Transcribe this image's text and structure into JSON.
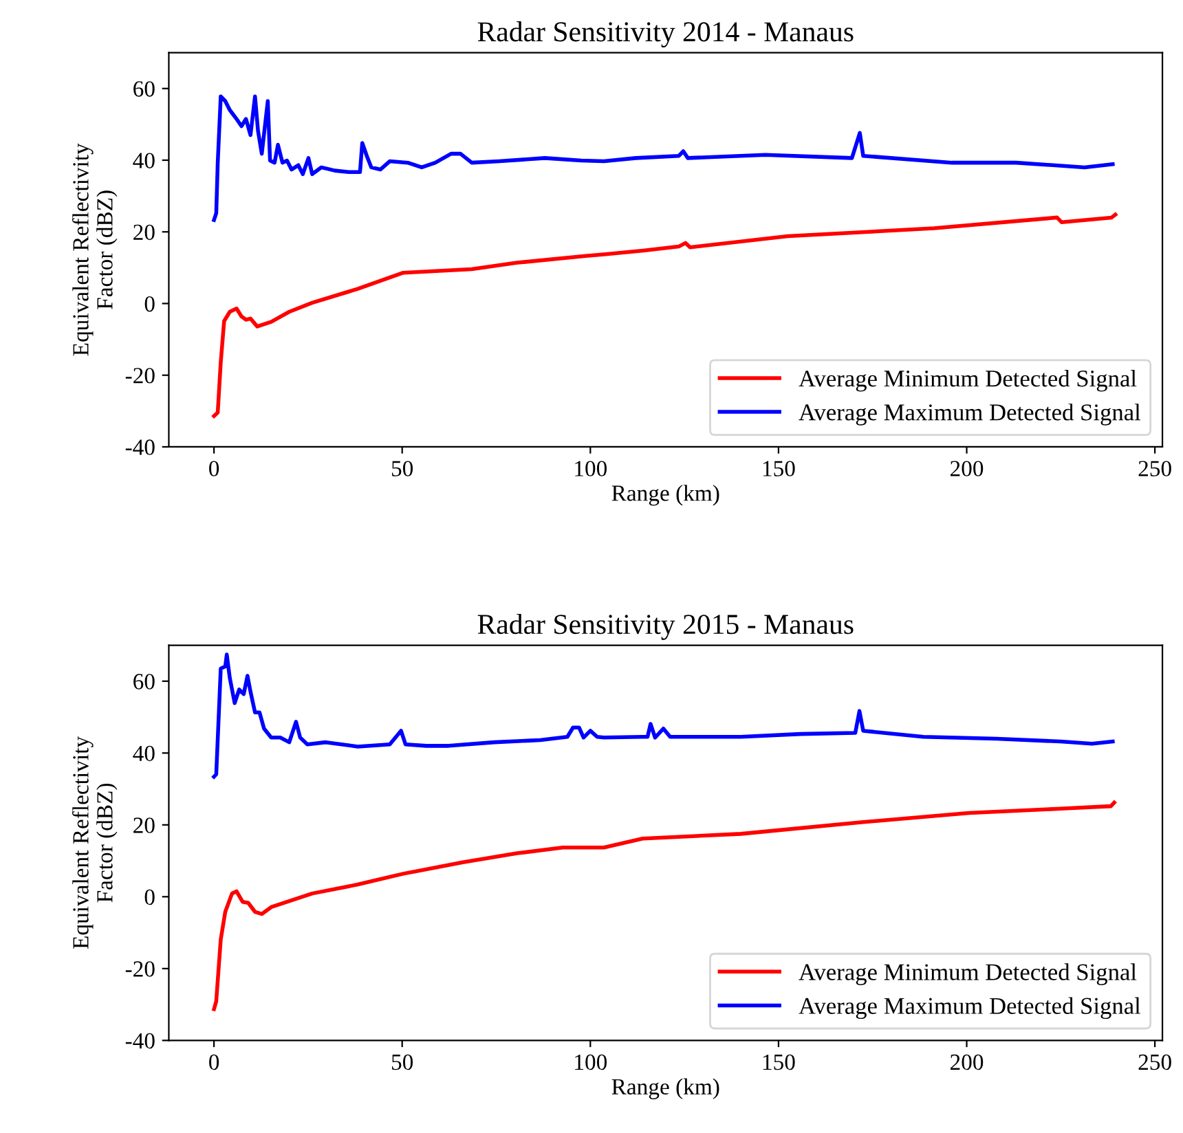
{
  "chart_data": [
    {
      "type": "line",
      "title": "Radar Sensitivity 2014 - Manaus",
      "xlabel": "Range (km)",
      "ylabel": "Equivalent Reflectivity\nFactor (dBZ)",
      "xlim": [
        -12,
        252
      ],
      "xticks": [
        0,
        50,
        100,
        150,
        200,
        250
      ],
      "ylim": [
        -40,
        70
      ],
      "yticks": [
        -40,
        -20,
        0,
        20,
        40,
        60
      ],
      "grid": false,
      "legend": "bottom right",
      "marker": "none",
      "line_style": "solid",
      "series": [
        {
          "name": "Average Minimum Detected Signal",
          "color": "#ff0000",
          "x": [
            0,
            1.0,
            1.8,
            2.7,
            4.2,
            6.0,
            7.3,
            8.5,
            9.7,
            11.5,
            15.2,
            20.0,
            26.1,
            38.2,
            50.3,
            68.5,
            80.6,
            98.8,
            103.6,
            114.5,
            123.5,
            125.3,
            126.5,
            152.5,
            191.3,
            224.0,
            225.2,
            238.5,
            239.5
          ],
          "values": [
            -31.4,
            -30.4,
            -16.4,
            -4.9,
            -2.3,
            -1.4,
            -3.6,
            -4.5,
            -4.2,
            -6.4,
            -5.1,
            -2.3,
            0.2,
            4.1,
            8.6,
            9.6,
            11.4,
            13.3,
            13.7,
            14.8,
            15.9,
            16.9,
            15.7,
            18.8,
            21.0,
            24.0,
            22.7,
            24.0,
            24.8
          ]
        },
        {
          "name": "Average Maximum Detected Signal",
          "color": "#0000ff",
          "x": [
            0,
            0.6,
            1.0,
            1.8,
            3.0,
            4.2,
            6.0,
            7.3,
            8.5,
            9.7,
            10.9,
            11.7,
            12.7,
            14.3,
            14.9,
            16.1,
            17.0,
            18.2,
            19.4,
            20.6,
            22.4,
            23.6,
            25.1,
            26.1,
            28.5,
            32.1,
            35.8,
            38.8,
            39.4,
            40.6,
            41.8,
            44.2,
            46.7,
            51.5,
            55.2,
            58.8,
            63.0,
            65.5,
            68.5,
            75.8,
            87.9,
            97.6,
            103.6,
            112.1,
            123.5,
            124.7,
            125.9,
            146.5,
            169.5,
            171.6,
            172.5,
            196.1,
            213.1,
            231.3,
            238.8
          ],
          "values": [
            23.3,
            25.2,
            39.3,
            57.8,
            56.5,
            54.0,
            51.5,
            49.5,
            51.5,
            47.0,
            57.8,
            48.2,
            41.8,
            56.5,
            39.9,
            39.3,
            44.3,
            39.3,
            39.9,
            37.4,
            38.6,
            36.1,
            40.6,
            36.1,
            38.0,
            37.1,
            36.7,
            36.7,
            44.8,
            41.2,
            38.0,
            37.4,
            39.7,
            39.3,
            38.0,
            39.3,
            41.8,
            41.8,
            39.3,
            39.7,
            40.6,
            39.9,
            39.7,
            40.6,
            41.2,
            42.5,
            40.6,
            41.5,
            40.6,
            47.6,
            41.2,
            39.3,
            39.3,
            38.0,
            38.9
          ]
        }
      ]
    },
    {
      "type": "line",
      "title": "Radar Sensitivity 2015 - Manaus",
      "xlabel": "Range (km)",
      "ylabel": "Equivalent Reflectivity\nFactor (dBZ)",
      "xlim": [
        -12,
        252
      ],
      "xticks": [
        0,
        50,
        100,
        150,
        200,
        250
      ],
      "ylim": [
        -40,
        70
      ],
      "yticks": [
        -40,
        -20,
        0,
        20,
        40,
        60
      ],
      "grid": false,
      "legend": "bottom right",
      "marker": "none",
      "line_style": "solid",
      "series": [
        {
          "name": "Average Minimum Detected Signal",
          "color": "#ff0000",
          "x": [
            0,
            0.6,
            1.8,
            3.0,
            4.8,
            6.0,
            7.6,
            9.1,
            10.9,
            12.7,
            15.2,
            26.1,
            38.2,
            50.3,
            66.1,
            80.6,
            92.7,
            103.6,
            113.9,
            140.0,
            171.5,
            200.6,
            224.9,
            238.3,
            239.2
          ],
          "values": [
            -31.3,
            -29.1,
            -11.9,
            -4.2,
            0.9,
            1.5,
            -1.4,
            -1.7,
            -4.2,
            -4.8,
            -2.9,
            0.9,
            3.4,
            6.4,
            9.6,
            12.1,
            13.7,
            13.7,
            16.2,
            17.5,
            20.7,
            23.3,
            24.5,
            25.2,
            26.2
          ]
        },
        {
          "name": "Average Maximum Detected Signal",
          "color": "#0000ff",
          "x": [
            0,
            0.6,
            1.8,
            3.0,
            3.4,
            4.2,
            5.5,
            6.7,
            7.9,
            8.9,
            9.7,
            10.9,
            12.1,
            13.3,
            15.2,
            17.6,
            20.0,
            21.8,
            22.9,
            24.8,
            29.7,
            38.2,
            46.7,
            49.7,
            50.9,
            56.4,
            62.4,
            74.5,
            86.7,
            93.9,
            95.4,
            97.0,
            98.2,
            100.0,
            101.8,
            103.6,
            113.9,
            115.2,
            116.0,
            117.2,
            119.4,
            121.2,
            140.0,
            155.8,
            170.4,
            171.5,
            172.5,
            188.5,
            207.9,
            224.9,
            233.3,
            238.8
          ],
          "values": [
            33.4,
            34.1,
            63.5,
            64.1,
            67.4,
            60.9,
            53.9,
            57.7,
            56.4,
            61.5,
            57.1,
            51.3,
            51.3,
            46.8,
            44.3,
            44.3,
            43.0,
            48.7,
            44.3,
            42.4,
            43.0,
            41.8,
            42.4,
            46.2,
            42.4,
            42.0,
            42.0,
            43.0,
            43.6,
            44.5,
            47.1,
            47.1,
            44.3,
            46.2,
            44.5,
            44.3,
            44.5,
            44.5,
            48.1,
            44.3,
            46.8,
            44.5,
            44.5,
            45.3,
            45.6,
            51.7,
            46.2,
            44.5,
            44.0,
            43.2,
            42.6,
            43.2
          ]
        }
      ]
    }
  ]
}
